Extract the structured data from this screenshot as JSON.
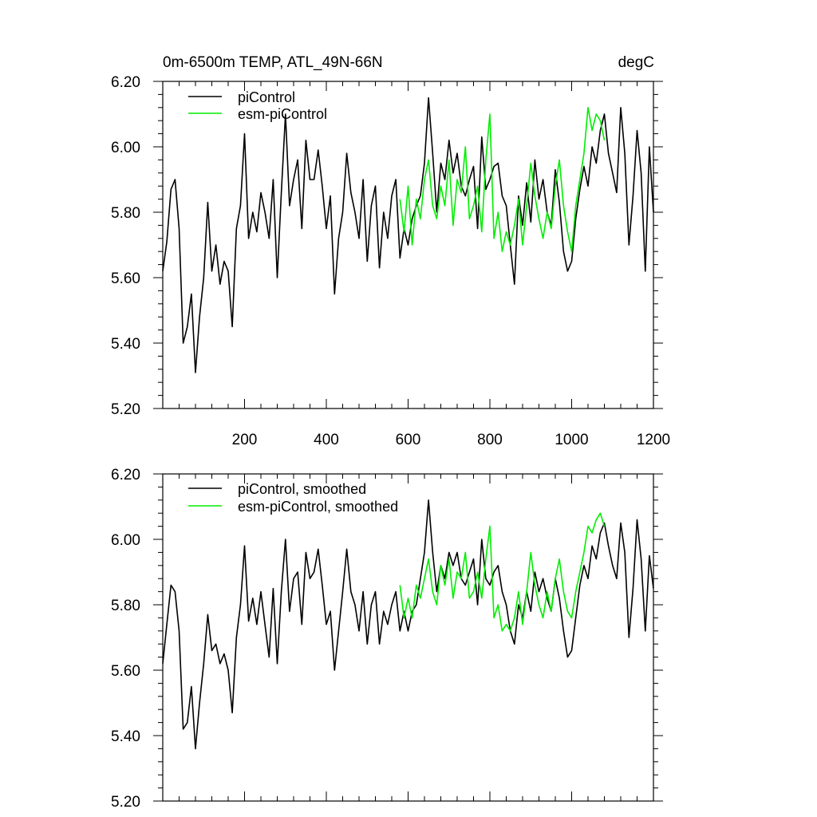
{
  "chart_data": [
    {
      "type": "line",
      "title": "0m-6500m TEMP, ATL_49N-66N",
      "units": "degC",
      "xlim": [
        0,
        1200
      ],
      "ylim": [
        5.2,
        6.2
      ],
      "x_ticks": [
        200,
        400,
        600,
        800,
        1000,
        1200
      ],
      "x_tick_labels": [
        "200",
        "400",
        "600",
        "800",
        "1000",
        "1200"
      ],
      "y_ticks": [
        5.2,
        5.4,
        5.6,
        5.8,
        6.0,
        6.2
      ],
      "y_tick_labels": [
        "5.20",
        "5.40",
        "5.60",
        "5.80",
        "6.00",
        "6.20"
      ],
      "legend_position": "top-left",
      "grid": false,
      "series": [
        {
          "name": "piControl",
          "color": "#000000",
          "x": [
            0,
            10,
            20,
            30,
            40,
            50,
            60,
            70,
            80,
            90,
            100,
            110,
            120,
            130,
            140,
            150,
            160,
            170,
            180,
            190,
            200,
            210,
            220,
            230,
            240,
            250,
            260,
            270,
            280,
            290,
            300,
            310,
            320,
            330,
            340,
            350,
            360,
            370,
            380,
            390,
            400,
            410,
            420,
            430,
            440,
            450,
            460,
            470,
            480,
            490,
            500,
            510,
            520,
            530,
            540,
            550,
            560,
            570,
            580,
            590,
            600,
            610,
            620,
            630,
            640,
            650,
            660,
            670,
            680,
            690,
            700,
            710,
            720,
            730,
            740,
            750,
            760,
            770,
            780,
            790,
            800,
            810,
            820,
            830,
            840,
            850,
            860,
            870,
            880,
            890,
            900,
            910,
            920,
            930,
            940,
            950,
            960,
            970,
            980,
            990,
            1000,
            1010,
            1020,
            1030,
            1040,
            1050,
            1060,
            1070,
            1080,
            1090,
            1100,
            1110,
            1120,
            1130,
            1140,
            1150,
            1160,
            1170,
            1180,
            1190,
            1200
          ],
          "y": [
            5.62,
            5.71,
            5.87,
            5.9,
            5.75,
            5.4,
            5.45,
            5.55,
            5.31,
            5.48,
            5.6,
            5.83,
            5.62,
            5.7,
            5.58,
            5.65,
            5.62,
            5.45,
            5.75,
            5.82,
            6.04,
            5.72,
            5.8,
            5.74,
            5.86,
            5.8,
            5.72,
            5.9,
            5.6,
            5.86,
            6.1,
            5.82,
            5.9,
            5.96,
            5.75,
            6.02,
            5.9,
            5.9,
            5.99,
            5.88,
            5.75,
            5.85,
            5.55,
            5.72,
            5.8,
            5.98,
            5.86,
            5.8,
            5.72,
            5.9,
            5.65,
            5.82,
            5.88,
            5.63,
            5.8,
            5.72,
            5.85,
            5.9,
            5.66,
            5.75,
            5.7,
            5.78,
            5.82,
            5.85,
            5.95,
            6.15,
            5.98,
            5.8,
            5.95,
            5.9,
            6.02,
            5.92,
            5.98,
            5.88,
            5.85,
            5.9,
            5.94,
            5.75,
            6.03,
            5.87,
            5.9,
            5.94,
            5.95,
            5.85,
            5.82,
            5.7,
            5.58,
            5.85,
            5.76,
            5.89,
            5.77,
            5.96,
            5.84,
            5.9,
            5.8,
            5.76,
            5.93,
            5.83,
            5.68,
            5.62,
            5.65,
            5.78,
            5.87,
            5.94,
            5.88,
            6.0,
            5.95,
            6.05,
            6.1,
            5.98,
            5.92,
            5.86,
            6.12,
            5.98,
            5.7,
            5.85,
            6.05,
            5.92,
            5.62,
            6.0,
            5.8
          ]
        },
        {
          "name": "esm-piControl",
          "color": "#00ee00",
          "x": [
            580,
            590,
            600,
            610,
            620,
            630,
            640,
            650,
            660,
            670,
            680,
            690,
            700,
            710,
            720,
            730,
            740,
            750,
            760,
            770,
            780,
            790,
            800,
            810,
            820,
            830,
            840,
            850,
            860,
            870,
            880,
            890,
            900,
            910,
            920,
            930,
            940,
            950,
            960,
            970,
            980,
            990,
            1000,
            1010,
            1020,
            1030,
            1040,
            1050,
            1060,
            1070,
            1080
          ],
          "y": [
            5.84,
            5.74,
            5.88,
            5.7,
            5.84,
            5.78,
            5.9,
            5.96,
            5.82,
            5.78,
            5.88,
            5.82,
            5.96,
            5.76,
            5.9,
            5.86,
            6.0,
            5.78,
            5.82,
            5.88,
            5.74,
            5.96,
            6.1,
            5.72,
            5.8,
            5.68,
            5.74,
            5.7,
            5.76,
            5.84,
            5.7,
            5.82,
            5.95,
            5.85,
            5.78,
            5.72,
            5.8,
            5.75,
            5.88,
            5.96,
            5.82,
            5.74,
            5.68,
            5.82,
            5.9,
            5.98,
            6.12,
            6.05,
            6.1,
            6.08,
            6.02
          ]
        }
      ]
    },
    {
      "type": "line",
      "xlim": [
        0,
        1200
      ],
      "ylim": [
        5.2,
        6.2
      ],
      "x_ticks": [
        200,
        400,
        600,
        800,
        1000,
        1200
      ],
      "y_ticks": [
        5.2,
        5.4,
        5.6,
        5.8,
        6.0,
        6.2
      ],
      "y_tick_labels": [
        "5.20",
        "5.40",
        "5.60",
        "5.80",
        "6.00",
        "6.20"
      ],
      "legend_position": "top-left",
      "grid": false,
      "series": [
        {
          "name": "piControl, smoothed",
          "color": "#000000",
          "x": [
            0,
            10,
            20,
            30,
            40,
            50,
            60,
            70,
            80,
            90,
            100,
            110,
            120,
            130,
            140,
            150,
            160,
            170,
            180,
            190,
            200,
            210,
            220,
            230,
            240,
            250,
            260,
            270,
            280,
            290,
            300,
            310,
            320,
            330,
            340,
            350,
            360,
            370,
            380,
            390,
            400,
            410,
            420,
            430,
            440,
            450,
            460,
            470,
            480,
            490,
            500,
            510,
            520,
            530,
            540,
            550,
            560,
            570,
            580,
            590,
            600,
            610,
            620,
            630,
            640,
            650,
            660,
            670,
            680,
            690,
            700,
            710,
            720,
            730,
            740,
            750,
            760,
            770,
            780,
            790,
            800,
            810,
            820,
            830,
            840,
            850,
            860,
            870,
            880,
            890,
            900,
            910,
            920,
            930,
            940,
            950,
            960,
            970,
            980,
            990,
            1000,
            1010,
            1020,
            1030,
            1040,
            1050,
            1060,
            1070,
            1080,
            1090,
            1100,
            1110,
            1120,
            1130,
            1140,
            1150,
            1160,
            1170,
            1180,
            1190,
            1200
          ],
          "y": [
            5.62,
            5.74,
            5.86,
            5.84,
            5.72,
            5.42,
            5.44,
            5.55,
            5.36,
            5.5,
            5.62,
            5.77,
            5.66,
            5.68,
            5.62,
            5.65,
            5.6,
            5.47,
            5.7,
            5.8,
            5.98,
            5.75,
            5.82,
            5.74,
            5.84,
            5.74,
            5.64,
            5.85,
            5.62,
            5.84,
            6.0,
            5.78,
            5.88,
            5.9,
            5.74,
            5.96,
            5.88,
            5.9,
            5.97,
            5.86,
            5.74,
            5.78,
            5.6,
            5.72,
            5.84,
            5.97,
            5.84,
            5.8,
            5.72,
            5.84,
            5.68,
            5.8,
            5.84,
            5.68,
            5.78,
            5.74,
            5.8,
            5.84,
            5.72,
            5.78,
            5.72,
            5.78,
            5.8,
            5.88,
            5.96,
            6.12,
            5.96,
            5.84,
            5.92,
            5.88,
            5.96,
            5.92,
            5.96,
            5.88,
            5.86,
            5.9,
            5.94,
            5.8,
            6.0,
            5.88,
            5.86,
            5.9,
            5.92,
            5.84,
            5.8,
            5.72,
            5.68,
            5.8,
            5.76,
            5.84,
            5.78,
            5.9,
            5.84,
            5.88,
            5.82,
            5.78,
            5.88,
            5.82,
            5.72,
            5.64,
            5.66,
            5.76,
            5.86,
            5.92,
            5.88,
            5.98,
            5.94,
            6.02,
            6.05,
            5.98,
            5.92,
            5.88,
            6.05,
            5.96,
            5.7,
            5.85,
            6.06,
            5.94,
            5.72,
            5.95,
            5.85
          ]
        },
        {
          "name": "esm-piControl, smoothed",
          "color": "#00ee00",
          "x": [
            580,
            590,
            600,
            610,
            620,
            630,
            640,
            650,
            660,
            670,
            680,
            690,
            700,
            710,
            720,
            730,
            740,
            750,
            760,
            770,
            780,
            790,
            800,
            810,
            820,
            830,
            840,
            850,
            860,
            870,
            880,
            890,
            900,
            910,
            920,
            930,
            940,
            950,
            960,
            970,
            980,
            990,
            1000,
            1010,
            1020,
            1030,
            1040,
            1050,
            1060,
            1070,
            1080
          ],
          "y": [
            5.86,
            5.76,
            5.82,
            5.76,
            5.86,
            5.82,
            5.88,
            5.94,
            5.84,
            5.8,
            5.92,
            5.86,
            5.94,
            5.82,
            5.9,
            5.88,
            5.96,
            5.82,
            5.84,
            5.9,
            5.82,
            5.94,
            6.04,
            5.76,
            5.8,
            5.72,
            5.74,
            5.72,
            5.76,
            5.84,
            5.74,
            5.84,
            5.96,
            5.86,
            5.8,
            5.76,
            5.84,
            5.78,
            5.88,
            5.94,
            5.84,
            5.78,
            5.76,
            5.84,
            5.9,
            5.96,
            6.04,
            6.02,
            6.06,
            6.08,
            6.04
          ]
        }
      ]
    }
  ]
}
